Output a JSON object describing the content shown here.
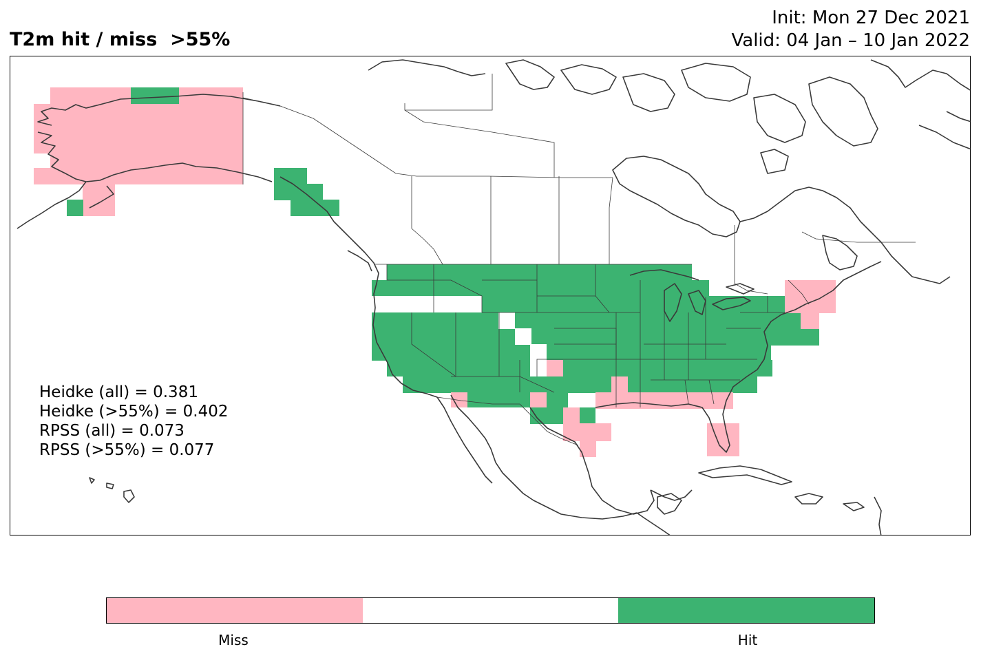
{
  "title": "T2m hit / miss  >55%",
  "init_text": "Init: Mon 27 Dec 2021",
  "valid_text": "Valid: 04 Jan – 10 Jan 2022",
  "stats": [
    "Heidke (all) = 0.381",
    "Heidke (>55%) = 0.402",
    "RPSS (all) = 0.073",
    "RPSS (>55%) = 0.077"
  ],
  "legend": {
    "categories": [
      "Miss",
      "",
      "Hit"
    ],
    "tick_labels": [
      "Miss",
      "Hit"
    ],
    "colors": {
      "miss": "#ffb6c1",
      "neutral": "#ffffff",
      "hit": "#3cb371"
    }
  },
  "colors": {
    "coast": "#3a3a3a",
    "border": "#3a3a3a",
    "frame": "#000000"
  }
}
